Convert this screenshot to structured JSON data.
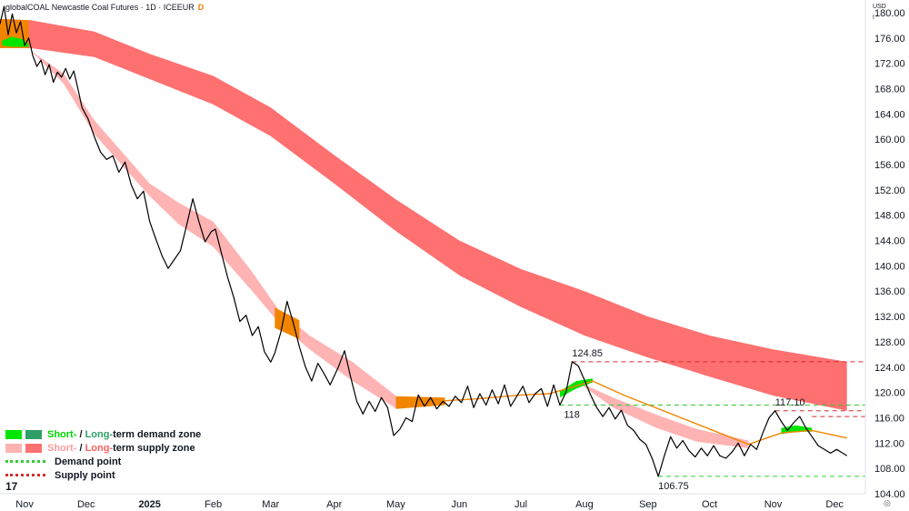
{
  "header": {
    "title": "globalCOAL Newcastle Coal Futures · 1D · ICEEUR",
    "badge": "D",
    "currency": "USD",
    "currency_sub": "t"
  },
  "legend": {
    "demand_short": "Short-",
    "demand_sep": " / ",
    "demand_long": "Long-",
    "demand_rest": "term demand zone",
    "supply_short": "Short-",
    "supply_sep": " / ",
    "supply_long": "Long-",
    "supply_rest": "term supply zone",
    "demand_point": "Demand point",
    "supply_point": "Supply point"
  },
  "branding": {
    "logo": "17"
  },
  "colors": {
    "price_line": "#000000",
    "short_demand": "#00e600",
    "long_demand": "#2e9e68",
    "short_supply": "#ffb3b3",
    "long_supply": "#ff7070",
    "transition": "#f28500",
    "demand_point": "#33cc33",
    "supply_point": "#d32f2f",
    "axis_text": "#131722",
    "grid": "none"
  },
  "chart_data": {
    "type": "line",
    "title": "globalCOAL Newcastle Coal Futures · 1D · ICEEUR",
    "xlabel": "",
    "ylabel": "",
    "grid": false,
    "legend_position": "bottom-left",
    "ylim": [
      104,
      182
    ],
    "xlim": [
      "2024-10-20",
      "2025-12-16"
    ],
    "y_ticks": [
      104,
      108,
      112,
      116,
      120,
      124,
      128,
      132,
      136,
      140,
      144,
      148,
      152,
      156,
      160,
      164,
      168,
      172,
      176,
      180
    ],
    "x_ticks": [
      {
        "label": "Nov",
        "date": "2024-11-01"
      },
      {
        "label": "Dec",
        "date": "2024-12-01"
      },
      {
        "label": "2025",
        "date": "2025-01-01"
      },
      {
        "label": "Feb",
        "date": "2025-02-01"
      },
      {
        "label": "Mar",
        "date": "2025-03-01"
      },
      {
        "label": "Apr",
        "date": "2025-04-01"
      },
      {
        "label": "May",
        "date": "2025-05-01"
      },
      {
        "label": "Jun",
        "date": "2025-06-01"
      },
      {
        "label": "Jul",
        "date": "2025-07-01"
      },
      {
        "label": "Aug",
        "date": "2025-08-01"
      },
      {
        "label": "Sep",
        "date": "2025-09-01"
      },
      {
        "label": "Oct",
        "date": "2025-10-01"
      },
      {
        "label": "Nov",
        "date": "2025-11-01"
      },
      {
        "label": "Dec",
        "date": "2025-12-01"
      }
    ],
    "price": [
      [
        "2024-10-20",
        178.2
      ],
      [
        "2024-10-22",
        181.0
      ],
      [
        "2024-10-24",
        176.5
      ],
      [
        "2024-10-26",
        179.8
      ],
      [
        "2024-10-28",
        176.8
      ],
      [
        "2024-10-30",
        178.6
      ],
      [
        "2024-11-01",
        174.8
      ],
      [
        "2024-11-03",
        176.0
      ],
      [
        "2024-11-05",
        173.2
      ],
      [
        "2024-11-07",
        171.5
      ],
      [
        "2024-11-09",
        172.5
      ],
      [
        "2024-11-11",
        170.2
      ],
      [
        "2024-11-13",
        171.8
      ],
      [
        "2024-11-15",
        169.0
      ],
      [
        "2024-11-17",
        170.6
      ],
      [
        "2024-11-19",
        169.8
      ],
      [
        "2024-11-21",
        171.2
      ],
      [
        "2024-11-23",
        169.5
      ],
      [
        "2024-11-25",
        170.8
      ],
      [
        "2024-11-27",
        168.0
      ],
      [
        "2024-11-29",
        165.0
      ],
      [
        "2024-12-02",
        163.2
      ],
      [
        "2024-12-05",
        160.4
      ],
      [
        "2024-12-08",
        158.0
      ],
      [
        "2024-12-11",
        156.8
      ],
      [
        "2024-12-14",
        157.4
      ],
      [
        "2024-12-17",
        154.8
      ],
      [
        "2024-12-20",
        156.4
      ],
      [
        "2024-12-23",
        152.8
      ],
      [
        "2024-12-26",
        150.6
      ],
      [
        "2024-12-29",
        151.8
      ],
      [
        "2025-01-01",
        147.0
      ],
      [
        "2025-01-04",
        144.2
      ],
      [
        "2025-01-07",
        141.6
      ],
      [
        "2025-01-10",
        139.6
      ],
      [
        "2025-01-13",
        141.0
      ],
      [
        "2025-01-16",
        142.4
      ],
      [
        "2025-01-19",
        146.4
      ],
      [
        "2025-01-22",
        150.6
      ],
      [
        "2025-01-25",
        147.0
      ],
      [
        "2025-01-28",
        143.8
      ],
      [
        "2025-01-31",
        145.4
      ],
      [
        "2025-02-02",
        145.8
      ],
      [
        "2025-02-05",
        142.0
      ],
      [
        "2025-02-08",
        138.2
      ],
      [
        "2025-02-11",
        135.0
      ],
      [
        "2025-02-14",
        131.2
      ],
      [
        "2025-02-17",
        132.2
      ],
      [
        "2025-02-20",
        129.0
      ],
      [
        "2025-02-23",
        130.4
      ],
      [
        "2025-02-26",
        126.4
      ],
      [
        "2025-03-01",
        124.8
      ],
      [
        "2025-03-03",
        126.2
      ],
      [
        "2025-03-06",
        129.6
      ],
      [
        "2025-03-09",
        134.4
      ],
      [
        "2025-03-12",
        131.0
      ],
      [
        "2025-03-15",
        127.2
      ],
      [
        "2025-03-18",
        124.0
      ],
      [
        "2025-03-21",
        121.8
      ],
      [
        "2025-03-24",
        124.6
      ],
      [
        "2025-03-27",
        123.0
      ],
      [
        "2025-03-30",
        121.2
      ],
      [
        "2025-04-03",
        124.0
      ],
      [
        "2025-04-06",
        126.6
      ],
      [
        "2025-04-09",
        122.4
      ],
      [
        "2025-04-12",
        118.6
      ],
      [
        "2025-04-15",
        116.6
      ],
      [
        "2025-04-18",
        118.6
      ],
      [
        "2025-04-21",
        117.0
      ],
      [
        "2025-04-24",
        119.2
      ],
      [
        "2025-04-27",
        117.6
      ],
      [
        "2025-04-30",
        113.2
      ],
      [
        "2025-05-03",
        114.2
      ],
      [
        "2025-05-06",
        116.0
      ],
      [
        "2025-05-09",
        115.4
      ],
      [
        "2025-05-12",
        119.6
      ],
      [
        "2025-05-15",
        117.8
      ],
      [
        "2025-05-18",
        119.2
      ],
      [
        "2025-05-21",
        117.4
      ],
      [
        "2025-05-24",
        118.6
      ],
      [
        "2025-05-27",
        117.8
      ],
      [
        "2025-05-30",
        119.4
      ],
      [
        "2025-06-02",
        118.4
      ],
      [
        "2025-06-05",
        121.0
      ],
      [
        "2025-06-08",
        117.6
      ],
      [
        "2025-06-11",
        119.8
      ],
      [
        "2025-06-14",
        118.0
      ],
      [
        "2025-06-17",
        120.4
      ],
      [
        "2025-06-20",
        118.2
      ],
      [
        "2025-06-23",
        121.2
      ],
      [
        "2025-06-26",
        117.8
      ],
      [
        "2025-06-29",
        119.4
      ],
      [
        "2025-07-02",
        121.0
      ],
      [
        "2025-07-05",
        118.4
      ],
      [
        "2025-07-08",
        119.8
      ],
      [
        "2025-07-11",
        120.6
      ],
      [
        "2025-07-14",
        117.8
      ],
      [
        "2025-07-17",
        121.2
      ],
      [
        "2025-07-20",
        118.0
      ],
      [
        "2025-07-23",
        120.0
      ],
      [
        "2025-07-26",
        124.85
      ],
      [
        "2025-07-29",
        124.2
      ],
      [
        "2025-08-01",
        122.0
      ],
      [
        "2025-08-04",
        119.6
      ],
      [
        "2025-08-07",
        117.6
      ],
      [
        "2025-08-10",
        116.2
      ],
      [
        "2025-08-13",
        117.6
      ],
      [
        "2025-08-16",
        115.8
      ],
      [
        "2025-08-19",
        117.2
      ],
      [
        "2025-08-22",
        114.8
      ],
      [
        "2025-08-25",
        114.0
      ],
      [
        "2025-08-28",
        112.6
      ],
      [
        "2025-08-31",
        111.8
      ],
      [
        "2025-09-03",
        109.6
      ],
      [
        "2025-09-06",
        106.75
      ],
      [
        "2025-09-09",
        110.0
      ],
      [
        "2025-09-12",
        113.0
      ],
      [
        "2025-09-15",
        111.2
      ],
      [
        "2025-09-18",
        112.4
      ],
      [
        "2025-09-21",
        110.8
      ],
      [
        "2025-09-24",
        109.8
      ],
      [
        "2025-09-27",
        111.2
      ],
      [
        "2025-09-30",
        110.0
      ],
      [
        "2025-10-03",
        111.6
      ],
      [
        "2025-10-06",
        110.0
      ],
      [
        "2025-10-09",
        109.6
      ],
      [
        "2025-10-12",
        110.6
      ],
      [
        "2025-10-15",
        112.0
      ],
      [
        "2025-10-18",
        110.0
      ],
      [
        "2025-10-21",
        111.8
      ],
      [
        "2025-10-24",
        111.0
      ],
      [
        "2025-10-27",
        113.6
      ],
      [
        "2025-10-30",
        116.0
      ],
      [
        "2025-11-02",
        117.1
      ],
      [
        "2025-11-05",
        115.4
      ],
      [
        "2025-11-08",
        114.0
      ],
      [
        "2025-11-11",
        115.2
      ],
      [
        "2025-11-14",
        116.2
      ],
      [
        "2025-11-17",
        114.4
      ],
      [
        "2025-11-20",
        113.0
      ],
      [
        "2025-11-23",
        111.6
      ],
      [
        "2025-11-26",
        111.0
      ],
      [
        "2025-11-29",
        110.4
      ],
      [
        "2025-12-02",
        111.0
      ],
      [
        "2025-12-05",
        110.4
      ],
      [
        "2025-12-07",
        110.0
      ]
    ],
    "long_term_zone": {
      "series_name": "Long-term supply zone",
      "date": [
        "2024-10-20",
        "2024-11-04",
        "2024-12-05",
        "2025-01-01",
        "2025-02-01",
        "2025-03-01",
        "2025-04-01",
        "2025-05-01",
        "2025-06-01",
        "2025-07-01",
        "2025-08-01",
        "2025-09-01",
        "2025-10-01",
        "2025-11-01",
        "2025-12-07"
      ],
      "upper": [
        179.0,
        178.8,
        177.0,
        173.5,
        170.0,
        165.0,
        157.5,
        150.5,
        144.0,
        139.5,
        136.0,
        132.0,
        129.0,
        126.8,
        124.85
      ],
      "lower": [
        174.4,
        174.4,
        173.0,
        169.5,
        165.5,
        160.5,
        153.0,
        145.5,
        138.5,
        133.5,
        129.0,
        125.5,
        122.5,
        119.5,
        117.1
      ]
    },
    "short_term_zone": {
      "series_name": "Short-term supply zone",
      "date": [
        "2024-11-04",
        "2024-11-20",
        "2024-12-05",
        "2025-01-01",
        "2025-01-15",
        "2025-02-01",
        "2025-02-20",
        "2025-03-05",
        "2025-03-20",
        "2025-04-10",
        "2025-05-01"
      ],
      "upper": [
        174.0,
        170.4,
        163.0,
        153.0,
        150.0,
        147.0,
        139.0,
        133.0,
        129.0,
        124.8,
        119.5
      ],
      "lower": [
        174.0,
        168.8,
        160.8,
        151.0,
        146.6,
        143.0,
        136.0,
        131.0,
        126.8,
        121.8,
        117.5
      ]
    },
    "short_term_zone_2": {
      "series_name": "Short-term supply zone",
      "date": [
        "2025-07-28",
        "2025-08-15",
        "2025-09-05",
        "2025-09-25",
        "2025-10-20"
      ],
      "upper": [
        121.8,
        119.2,
        116.5,
        114.2,
        112.4
      ],
      "lower": [
        121.8,
        117.6,
        114.4,
        112.2,
        111.2
      ]
    },
    "short_term_line": {
      "date": [
        "2025-05-01",
        "2025-05-20",
        "2025-06-10",
        "2025-07-01",
        "2025-07-15",
        "2025-08-05",
        "2025-08-20",
        "2025-10-20",
        "2025-11-05",
        "2025-11-20",
        "2025-12-07"
      ],
      "value": [
        118.2,
        118.6,
        119.0,
        119.6,
        119.8,
        121.8,
        119.6,
        111.8,
        113.6,
        114.0,
        112.8
      ]
    },
    "demand_highlights": [
      {
        "date": [
          "2024-10-21",
          "2024-10-26",
          "2024-10-31",
          "2024-11-03"
        ],
        "upper": [
          175.6,
          176.2,
          175.8,
          175.0
        ],
        "lower": [
          174.8,
          174.6,
          174.6,
          174.6
        ]
      },
      {
        "date": [
          "2025-07-20",
          "2025-07-28",
          "2025-08-05"
        ],
        "upper": [
          120.2,
          121.8,
          122.2
        ],
        "lower": [
          119.2,
          120.6,
          121.6
        ]
      },
      {
        "date": [
          "2025-11-05",
          "2025-11-12",
          "2025-11-20"
        ],
        "upper": [
          114.4,
          114.8,
          114.4
        ],
        "lower": [
          113.4,
          113.8,
          113.8
        ]
      }
    ],
    "transition_zones": [
      {
        "date": [
          "2024-10-20",
          "2024-11-03"
        ],
        "upper": [
          179.0,
          178.8
        ],
        "lower": [
          174.4,
          174.4
        ]
      },
      {
        "date": [
          "2025-03-03",
          "2025-03-15"
        ],
        "upper": [
          133.4,
          131.4
        ],
        "lower": [
          130.2,
          128.4
        ]
      },
      {
        "date": [
          "2025-05-01",
          "2025-05-25"
        ],
        "upper": [
          119.4,
          119.2
        ],
        "lower": [
          117.4,
          118.0
        ]
      }
    ],
    "levels": [
      {
        "kind": "supply",
        "value": 124.85,
        "from": "2025-07-26",
        "label": "124.85"
      },
      {
        "kind": "supply",
        "value": 118,
        "from": "2025-07-24",
        "label": ""
      },
      {
        "kind": "supply",
        "value": 117.1,
        "from": "2025-11-02",
        "label": ""
      },
      {
        "kind": "supply",
        "value": 116.2,
        "from": "2025-11-20",
        "label": ""
      },
      {
        "kind": "demand",
        "value": 118,
        "from": "2025-07-20",
        "label": "118"
      },
      {
        "kind": "demand",
        "value": 106.75,
        "from": "2025-09-06",
        "label": "106.75"
      }
    ],
    "annotations": [
      {
        "text": "124.85",
        "date": "2025-07-26",
        "value": 124.85,
        "position": "above"
      },
      {
        "text": "118",
        "date": "2025-07-22",
        "value": 118,
        "position": "below"
      },
      {
        "text": "117.10",
        "date": "2025-11-02",
        "value": 117.1,
        "position": "above"
      },
      {
        "text": "106.75",
        "date": "2025-09-06",
        "value": 106.75,
        "position": "below"
      }
    ],
    "y_tick_labels": [
      "104.00",
      "108.00",
      "112.00",
      "116.00",
      "120.00",
      "124.00",
      "128.00",
      "132.00",
      "136.00",
      "140.00",
      "144.00",
      "148.00",
      "152.00",
      "156.00",
      "160.00",
      "164.00",
      "168.00",
      "172.00",
      "176.00",
      "180.00"
    ]
  }
}
